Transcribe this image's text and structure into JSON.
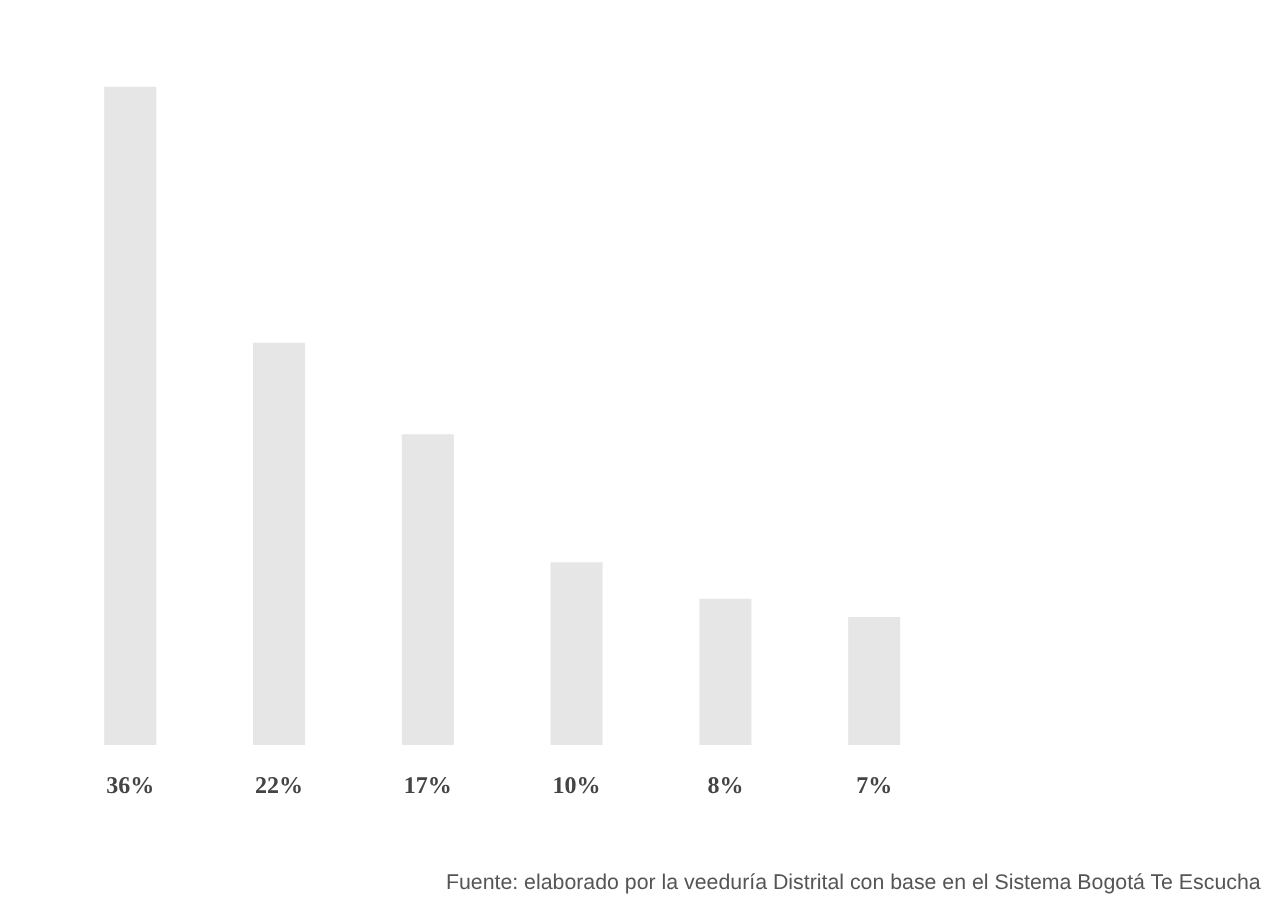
{
  "chart_data": {
    "type": "bar",
    "categories": [
      null,
      null,
      null,
      null,
      null,
      null
    ],
    "values": [
      36,
      22,
      17,
      10,
      8,
      7
    ],
    "value_labels": [
      "36%",
      "22%",
      "17%",
      "10%",
      "8%",
      "7%"
    ],
    "color": "#e6e6e6",
    "tick_labels": false,
    "grid": false,
    "annotations": [
      "Fuente: elaborado por la veeduría Distrital con base en el Sistema Bogotá Te Escucha"
    ]
  }
}
